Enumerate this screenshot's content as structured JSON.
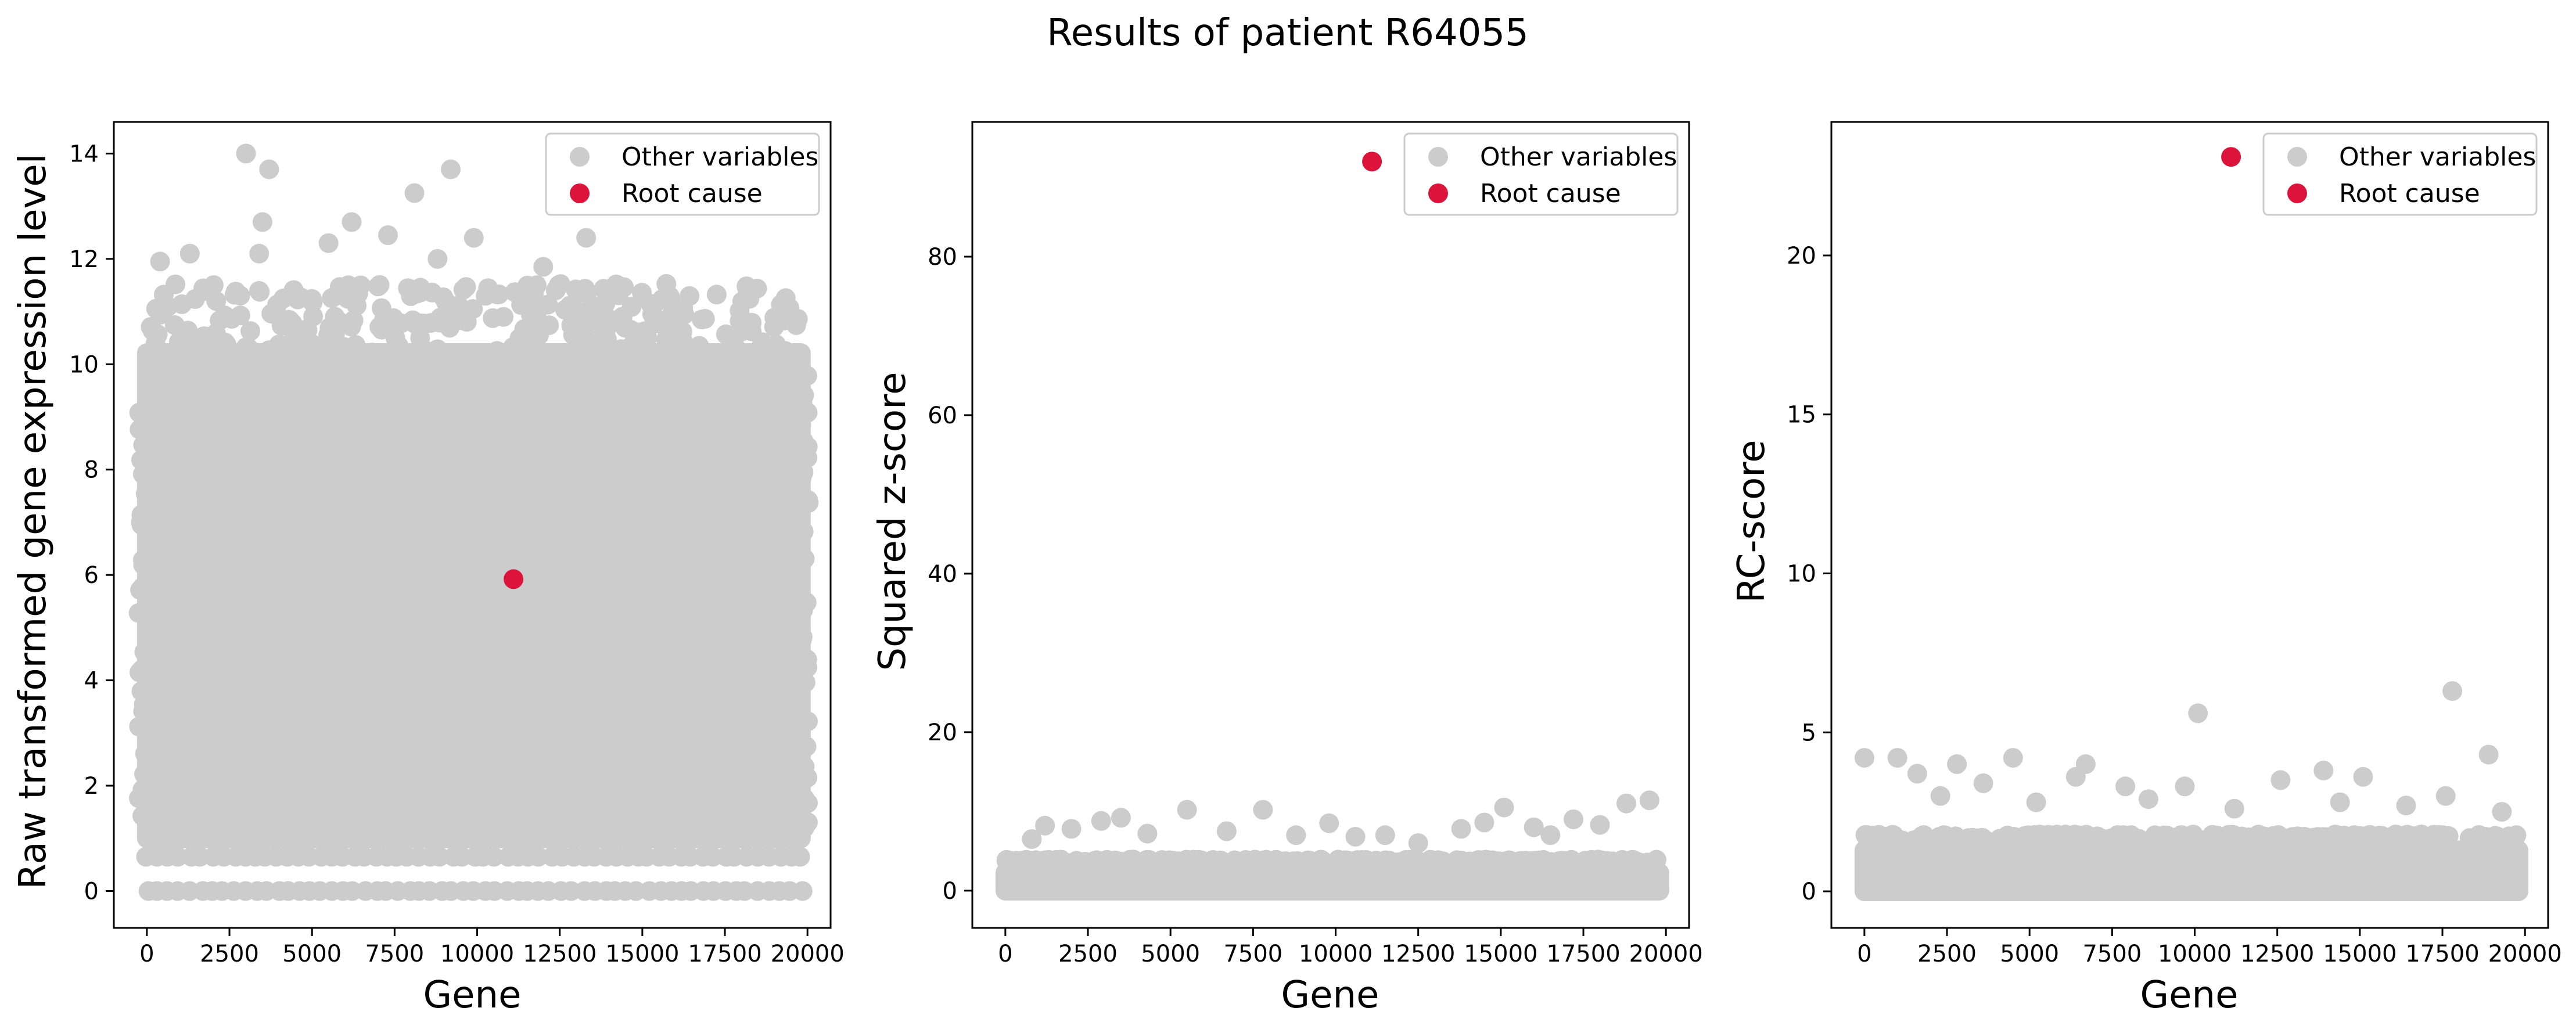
{
  "figure": {
    "title": "Results of patient R64055"
  },
  "colors": {
    "other": "#cccccc",
    "root": "#dc143c",
    "axis": "#000000",
    "legend_border": "#cccccc"
  },
  "chart_data": [
    {
      "type": "scatter",
      "xlabel": "Gene",
      "ylabel": "Raw transformed gene expression level",
      "xlim": [
        -1000,
        20700
      ],
      "ylim": [
        -0.7,
        14.6
      ],
      "xticks": [
        0,
        2500,
        5000,
        7500,
        10000,
        12500,
        15000,
        17500,
        20000
      ],
      "yticks": [
        0,
        2,
        4,
        6,
        8,
        10,
        12,
        14
      ],
      "xtick_labels": [
        "0",
        "2500",
        "5000",
        "7500",
        "10000",
        "12500",
        "15000",
        "17500",
        "20000"
      ],
      "ytick_labels": [
        "0",
        "2",
        "4",
        "6",
        "8",
        "10",
        "12",
        "14"
      ],
      "legend": [
        "Other variables",
        "Root cause"
      ],
      "legend_position": "top-right",
      "series": [
        {
          "name": "Other variables",
          "x_max": 19800,
          "dense_min": 1.0,
          "dense_max": 10.4,
          "dense_rows": [
            0.0,
            0.65,
            1.3
          ],
          "outliers": [
            [
              3000,
              14.0
            ],
            [
              3700,
              13.7
            ],
            [
              9200,
              13.7
            ],
            [
              8100,
              13.25
            ],
            [
              3500,
              12.7
            ],
            [
              6200,
              12.7
            ],
            [
              9900,
              12.4
            ],
            [
              13300,
              12.4
            ],
            [
              7300,
              12.45
            ],
            [
              1300,
              12.1
            ],
            [
              3400,
              12.1
            ],
            [
              5500,
              12.3
            ],
            [
              8800,
              12.0
            ],
            [
              12000,
              11.85
            ],
            [
              400,
              11.95
            ],
            [
              6100,
              11.5
            ],
            [
              11800,
              11.5
            ],
            [
              15300,
              10.95
            ],
            [
              16800,
              10.85
            ],
            [
              10800,
              10.9
            ],
            [
              12900,
              11.1
            ],
            [
              2100,
              11.2
            ],
            [
              18400,
              10.1
            ],
            [
              19400,
              10.05
            ],
            [
              17100,
              10.05
            ]
          ]
        },
        {
          "name": "Root cause",
          "points": [
            [
              11100,
              5.92
            ]
          ]
        }
      ]
    },
    {
      "type": "scatter",
      "xlabel": "Gene",
      "ylabel": "Squared z-score",
      "xlim": [
        -1000,
        20700
      ],
      "ylim": [
        -4.7,
        97.0
      ],
      "xticks": [
        0,
        2500,
        5000,
        7500,
        10000,
        12500,
        15000,
        17500,
        20000
      ],
      "yticks": [
        0,
        20,
        40,
        60,
        80
      ],
      "xtick_labels": [
        "0",
        "2500",
        "5000",
        "7500",
        "10000",
        "12500",
        "15000",
        "17500",
        "20000"
      ],
      "ytick_labels": [
        "0",
        "20",
        "40",
        "60",
        "80"
      ],
      "legend": [
        "Other variables",
        "Root cause"
      ],
      "legend_position": "top-right",
      "series": [
        {
          "name": "Other variables",
          "x_max": 19800,
          "dense_min": 0.0,
          "dense_max": 3.5,
          "outliers": [
            [
              1200,
              8.2
            ],
            [
              2000,
              7.8
            ],
            [
              2900,
              8.8
            ],
            [
              3500,
              9.2
            ],
            [
              5500,
              10.2
            ],
            [
              6700,
              7.5
            ],
            [
              7800,
              10.2
            ],
            [
              8800,
              7.0
            ],
            [
              9800,
              8.5
            ],
            [
              11500,
              7.0
            ],
            [
              12500,
              6.0
            ],
            [
              13800,
              7.8
            ],
            [
              14500,
              8.6
            ],
            [
              15100,
              10.5
            ],
            [
              16000,
              8.0
            ],
            [
              17200,
              9.0
            ],
            [
              18000,
              8.3
            ],
            [
              18800,
              11.0
            ],
            [
              19500,
              11.4
            ],
            [
              800,
              6.5
            ],
            [
              4300,
              7.2
            ],
            [
              10600,
              6.8
            ],
            [
              16500,
              7.0
            ]
          ]
        },
        {
          "name": "Root cause",
          "points": [
            [
              11100,
              92.0
            ]
          ]
        }
      ]
    },
    {
      "type": "scatter",
      "xlabel": "Gene",
      "ylabel": "RC-score",
      "xlim": [
        -1000,
        20700
      ],
      "ylim": [
        -1.15,
        24.2
      ],
      "xticks": [
        0,
        2500,
        5000,
        7500,
        10000,
        12500,
        15000,
        17500,
        20000
      ],
      "yticks": [
        0,
        5,
        10,
        15,
        20
      ],
      "xtick_labels": [
        "0",
        "2500",
        "5000",
        "7500",
        "10000",
        "12500",
        "15000",
        "17500",
        "20000"
      ],
      "ytick_labels": [
        "0",
        "5",
        "10",
        "15",
        "20"
      ],
      "legend": [
        "Other variables",
        "Root cause"
      ],
      "legend_position": "top-right",
      "series": [
        {
          "name": "Other variables",
          "x_max": 19800,
          "dense_min": 0.0,
          "dense_max": 1.6,
          "outliers": [
            [
              0,
              4.2
            ],
            [
              1000,
              4.2
            ],
            [
              1600,
              3.7
            ],
            [
              2800,
              4.0
            ],
            [
              4500,
              4.2
            ],
            [
              6700,
              4.0
            ],
            [
              6400,
              3.6
            ],
            [
              3600,
              3.4
            ],
            [
              7900,
              3.3
            ],
            [
              10100,
              5.6
            ],
            [
              9700,
              3.3
            ],
            [
              12600,
              3.5
            ],
            [
              13900,
              3.8
            ],
            [
              15100,
              3.6
            ],
            [
              17800,
              6.3
            ],
            [
              18900,
              4.3
            ],
            [
              17600,
              3.0
            ],
            [
              19300,
              2.5
            ],
            [
              2300,
              3.0
            ],
            [
              5200,
              2.8
            ],
            [
              8600,
              2.9
            ],
            [
              11200,
              2.6
            ],
            [
              14400,
              2.8
            ],
            [
              16400,
              2.7
            ]
          ]
        },
        {
          "name": "Root cause",
          "points": [
            [
              11100,
              23.1
            ]
          ]
        }
      ]
    }
  ]
}
